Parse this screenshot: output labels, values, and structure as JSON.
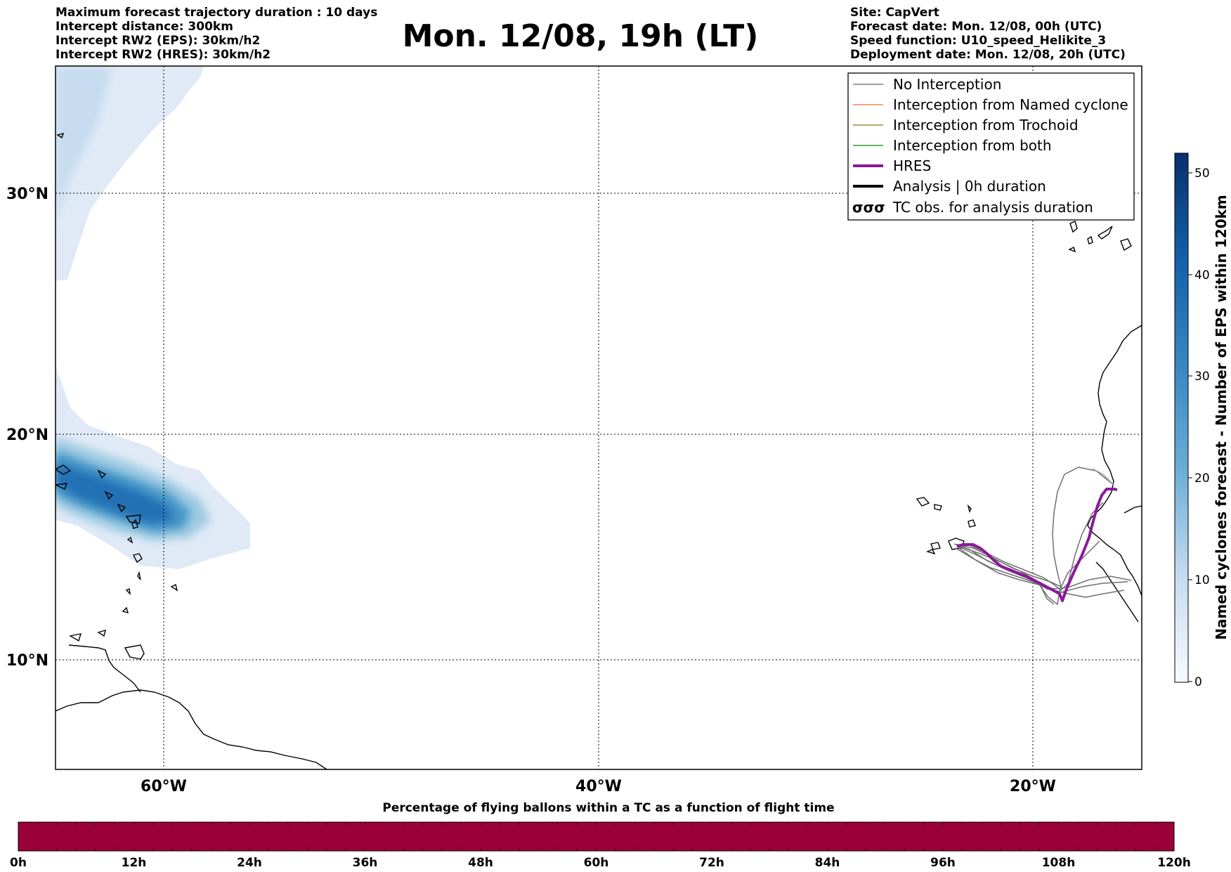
{
  "header_left": [
    "Maximum forecast trajectory duration : 10 days",
    "Intercept distance: 300km",
    "Intercept RW2 (EPS):  30km/h2",
    "Intercept RW2 (HRES): 30km/h2"
  ],
  "header_right": [
    "Site: CapVert",
    "Forecast date: Mon. 12/08, 00h (UTC)",
    "Speed function: U10_speed_Helikite_3",
    "Deployment date: Mon. 12/08, 20h (UTC)"
  ],
  "title": "Mon. 12/08, 19h (LT)",
  "map": {
    "lat_labels": [
      "30°N",
      "20°N",
      "10°N"
    ],
    "lon_labels": [
      "60°W",
      "40°W",
      "20°W"
    ]
  },
  "legend": {
    "items": [
      {
        "label": "No Interception",
        "color": "#808080",
        "style": "thin"
      },
      {
        "label": "Interception from Named cyclone",
        "color": "#ff7f50",
        "style": "thin"
      },
      {
        "label": "Interception from Trochoid",
        "color": "#9a8a3a",
        "style": "thin"
      },
      {
        "label": "Interception from both",
        "color": "#2ca02c",
        "style": "thin"
      },
      {
        "label": "HRES",
        "color": "#8b1a9a",
        "style": "thick"
      },
      {
        "label": "Analysis | 0h duration",
        "color": "#000000",
        "style": "thick"
      },
      {
        "label": "TC obs. for analysis duration",
        "color": "#000000",
        "style": "symbol",
        "symbol": "σσσ"
      }
    ]
  },
  "colorbar": {
    "title": "Named cyclones forecast - Number of EPS within 120km",
    "ticks": [
      "0",
      "10",
      "20",
      "30",
      "40",
      "50"
    ],
    "colormap": "Blues",
    "range": [
      0,
      52
    ]
  },
  "bottom_bar": {
    "title": "Percentage of flying ballons within a TC as a function of flight time",
    "ticks": [
      "0h",
      "12h",
      "24h",
      "36h",
      "48h",
      "60h",
      "72h",
      "84h",
      "96h",
      "108h",
      "120h"
    ],
    "fill_color": "#9b0039"
  },
  "colors": {
    "hres": "#8b1a9a",
    "trajectory": "#707070",
    "coast": "#000000"
  }
}
